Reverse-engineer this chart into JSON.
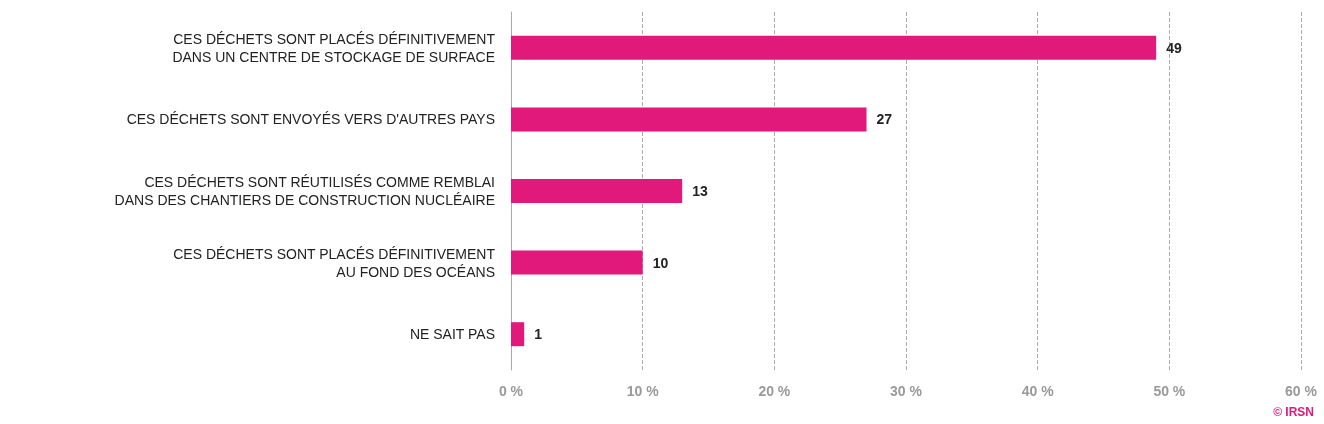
{
  "chart_data": {
    "type": "bar",
    "orientation": "horizontal",
    "categories": [
      "CES DÉCHETS SONT PLACÉS DÉFINITIVEMENT\nDANS UN CENTRE DE STOCKAGE DE SURFACE",
      "CES DÉCHETS SONT ENVOYÉS VERS D'AUTRES PAYS",
      "CES DÉCHETS SONT RÉUTILISÉS COMME REMBLAI\nDANS DES CHANTIERS DE CONSTRUCTION NUCLÉAIRE",
      "CES DÉCHETS SONT PLACÉS DÉFINITIVEMENT\nAU FOND DES OCÉANS",
      "NE SAIT PAS"
    ],
    "values": [
      49,
      27,
      13,
      10,
      1
    ],
    "color": "#e0197a",
    "data_labels": true,
    "xlim": [
      0,
      60
    ],
    "xticks": [
      {
        "value": 0,
        "label": "0 %"
      },
      {
        "value": 10,
        "label": "10 %"
      },
      {
        "value": 20,
        "label": "20 %"
      },
      {
        "value": 30,
        "label": "30 %"
      },
      {
        "value": 40,
        "label": "40 %"
      },
      {
        "value": 50,
        "label": "50 %"
      },
      {
        "value": 60,
        "label": "60 %"
      }
    ],
    "grid": "x",
    "annotations": [
      "© IRSN"
    ]
  }
}
